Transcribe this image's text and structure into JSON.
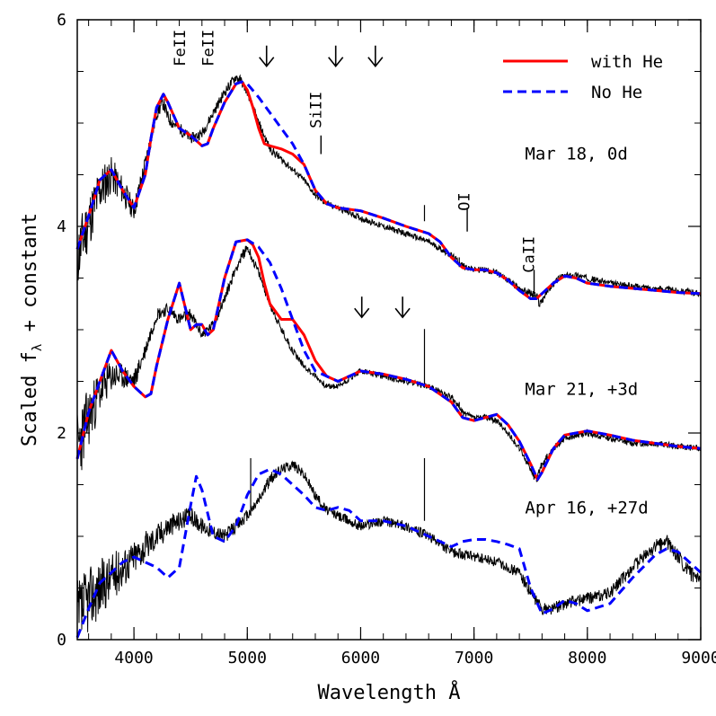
{
  "chart_data": {
    "type": "line",
    "xlabel": "Wavelength Å",
    "ylabel_main": "Scaled f",
    "ylabel_sub": "λ",
    "ylabel_tail": " + constant",
    "xlim": [
      3500,
      9000
    ],
    "ylim": [
      0,
      6
    ],
    "x_ticks": [
      4000,
      5000,
      6000,
      7000,
      8000,
      9000
    ],
    "x_minor_step": 200,
    "y_ticks": [
      0,
      2,
      4,
      6
    ],
    "y_minor_step": 0.5,
    "legend": {
      "position": "top-right",
      "entries": [
        {
          "label": "with He",
          "color": "#ff0000",
          "style": "solid"
        },
        {
          "label": "No He",
          "color": "#0000ff",
          "style": "dashed"
        }
      ]
    },
    "epochs": [
      {
        "label": "Mar 18,  0d",
        "x": 7450,
        "y": 4.65
      },
      {
        "label": "Mar 21,  +3d",
        "x": 7450,
        "y": 2.37
      },
      {
        "label": "Apr 16,  +27d",
        "x": 7450,
        "y": 1.22
      }
    ],
    "line_ids": [
      {
        "label": "FeII",
        "x": 4450,
        "y": 5.55
      },
      {
        "label": "FeII",
        "x": 4700,
        "y": 5.55
      },
      {
        "label": "SiII",
        "x": 5650,
        "y": 4.95
      },
      {
        "label": "OI",
        "x": 6960,
        "y": 4.15
      },
      {
        "label": "CaII",
        "x": 7530,
        "y": 3.55
      }
    ],
    "id_ticks": [
      {
        "x": 5650,
        "y1": 4.7,
        "y2": 4.88
      },
      {
        "x": 6940,
        "y1": 3.95,
        "y2": 4.18
      },
      {
        "x": 7530,
        "y1": 3.35,
        "y2": 3.58
      }
    ],
    "arrows": [
      {
        "x": 5170,
        "y_top": 5.75,
        "y_bottom": 5.55
      },
      {
        "x": 5780,
        "y_top": 5.75,
        "y_bottom": 5.55
      },
      {
        "x": 6130,
        "y_top": 5.75,
        "y_bottom": 5.55
      },
      {
        "x": 6010,
        "y_top": 3.32,
        "y_bottom": 3.12
      },
      {
        "x": 6370,
        "y_top": 3.32,
        "y_bottom": 3.12
      }
    ],
    "observed": [
      {
        "name": "Mar 18 observed",
        "seed": 11,
        "x": [
          3500,
          3600,
          3700,
          3800,
          3900,
          4000,
          4100,
          4200,
          4260,
          4300,
          4400,
          4500,
          4600,
          4700,
          4800,
          4900,
          4950,
          5000,
          5100,
          5200,
          5300,
          5400,
          5500,
          5600,
          5700,
          5800,
          6000,
          6200,
          6400,
          6600,
          6800,
          6900,
          7000,
          7100,
          7200,
          7300,
          7400,
          7500,
          7550,
          7580,
          7650,
          7750,
          7800,
          7900,
          8000,
          8200,
          8400,
          8600,
          8800,
          9000
        ],
        "y": [
          3.7,
          4.05,
          4.35,
          4.5,
          4.35,
          4.15,
          4.6,
          5.1,
          5.2,
          5.05,
          4.95,
          4.85,
          4.9,
          5.1,
          5.3,
          5.45,
          5.4,
          5.3,
          5.0,
          4.75,
          4.65,
          4.55,
          4.45,
          4.3,
          4.22,
          4.18,
          4.08,
          4.0,
          3.93,
          3.85,
          3.72,
          3.62,
          3.58,
          3.58,
          3.55,
          3.48,
          3.4,
          3.35,
          3.32,
          3.25,
          3.38,
          3.5,
          3.52,
          3.53,
          3.5,
          3.45,
          3.42,
          3.4,
          3.38,
          3.35
        ],
        "noise": [
          0.32,
          0.28,
          0.24,
          0.18,
          0.14,
          0.1,
          0.1,
          0.08,
          0.07,
          0.07,
          0.06,
          0.05,
          0.05,
          0.05,
          0.05,
          0.05,
          0.05,
          0.04,
          0.04,
          0.04,
          0.04,
          0.03,
          0.03,
          0.03,
          0.03,
          0.03,
          0.03,
          0.03,
          0.03,
          0.03,
          0.03,
          0.03,
          0.03,
          0.03,
          0.03,
          0.03,
          0.03,
          0.04,
          0.05,
          0.05,
          0.03,
          0.03,
          0.03,
          0.03,
          0.03,
          0.03,
          0.03,
          0.03,
          0.03,
          0.03
        ]
      },
      {
        "name": "Mar 21 observed",
        "seed": 23,
        "x": [
          3500,
          3600,
          3700,
          3800,
          3900,
          4000,
          4100,
          4200,
          4300,
          4400,
          4500,
          4600,
          4700,
          4800,
          4900,
          5000,
          5100,
          5200,
          5300,
          5400,
          5500,
          5600,
          5700,
          5800,
          6000,
          6200,
          6400,
          6600,
          6800,
          6900,
          7000,
          7100,
          7200,
          7300,
          7400,
          7500,
          7550,
          7600,
          7700,
          7800,
          8000,
          8200,
          8400,
          8600,
          8800,
          9000
        ],
        "y": [
          1.85,
          2.15,
          2.4,
          2.55,
          2.55,
          2.5,
          2.8,
          3.15,
          3.2,
          3.1,
          3.15,
          2.95,
          3.05,
          3.3,
          3.6,
          3.8,
          3.55,
          3.25,
          3.0,
          2.8,
          2.65,
          2.55,
          2.45,
          2.45,
          2.6,
          2.55,
          2.5,
          2.45,
          2.35,
          2.2,
          2.15,
          2.15,
          2.12,
          2.0,
          1.85,
          1.65,
          1.55,
          1.7,
          1.85,
          1.95,
          2.0,
          1.95,
          1.9,
          1.9,
          1.87,
          1.85
        ],
        "noise": [
          0.38,
          0.3,
          0.22,
          0.16,
          0.12,
          0.1,
          0.08,
          0.07,
          0.06,
          0.06,
          0.06,
          0.05,
          0.05,
          0.05,
          0.05,
          0.05,
          0.04,
          0.04,
          0.04,
          0.04,
          0.03,
          0.03,
          0.03,
          0.03,
          0.03,
          0.03,
          0.03,
          0.03,
          0.03,
          0.03,
          0.03,
          0.03,
          0.03,
          0.03,
          0.03,
          0.04,
          0.05,
          0.04,
          0.03,
          0.03,
          0.03,
          0.03,
          0.03,
          0.03,
          0.03,
          0.03
        ]
      },
      {
        "name": "Apr 16 observed",
        "seed": 37,
        "x": [
          3500,
          3600,
          3700,
          3800,
          3900,
          4000,
          4100,
          4200,
          4300,
          4400,
          4500,
          4600,
          4700,
          4800,
          4900,
          5000,
          5100,
          5200,
          5300,
          5400,
          5500,
          5600,
          5700,
          5800,
          5900,
          6000,
          6200,
          6400,
          6600,
          6800,
          7000,
          7200,
          7400,
          7500,
          7600,
          7700,
          7800,
          8000,
          8200,
          8400,
          8600,
          8700,
          8800,
          8900,
          9000
        ],
        "y": [
          0.2,
          0.4,
          0.5,
          0.6,
          0.7,
          0.8,
          0.9,
          1.0,
          1.1,
          1.15,
          1.2,
          1.1,
          1.05,
          1.0,
          1.1,
          1.2,
          1.35,
          1.55,
          1.65,
          1.7,
          1.6,
          1.4,
          1.25,
          1.2,
          1.15,
          1.1,
          1.15,
          1.1,
          1.0,
          0.85,
          0.8,
          0.75,
          0.65,
          0.45,
          0.3,
          0.3,
          0.35,
          0.4,
          0.45,
          0.7,
          0.9,
          0.95,
          0.8,
          0.65,
          0.55
        ],
        "noise": [
          0.38,
          0.32,
          0.28,
          0.24,
          0.2,
          0.17,
          0.15,
          0.13,
          0.12,
          0.1,
          0.09,
          0.08,
          0.07,
          0.07,
          0.07,
          0.06,
          0.06,
          0.06,
          0.05,
          0.05,
          0.05,
          0.05,
          0.05,
          0.05,
          0.05,
          0.05,
          0.05,
          0.05,
          0.05,
          0.05,
          0.05,
          0.05,
          0.05,
          0.06,
          0.06,
          0.06,
          0.06,
          0.06,
          0.06,
          0.06,
          0.07,
          0.07,
          0.07,
          0.07,
          0.07
        ]
      }
    ],
    "spikes": [
      {
        "x": 6563,
        "y0": 4.05,
        "y1": 4.05,
        "series": "Mar 18"
      },
      {
        "x": 6563,
        "y0": 2.45,
        "y1": 2.85,
        "series": "Mar 21"
      },
      {
        "x": 6563,
        "y0": 1.15,
        "y1": 1.6,
        "series": "Apr 16"
      },
      {
        "x": 5030,
        "y0": 1.2,
        "y1": 1.6,
        "series": "Apr 16"
      },
      {
        "x": 6870,
        "y0": 3.7,
        "y1": 3.45,
        "series": "Mar 18"
      },
      {
        "x": 6870,
        "y0": 2.3,
        "y1": 2.1,
        "series": "Mar 21"
      }
    ],
    "models": [
      {
        "name": "with He Mar 18",
        "color": "#ff0000",
        "style": "solid",
        "x": [
          3500,
          3600,
          3700,
          3800,
          3900,
          4000,
          4100,
          4150,
          4200,
          4260,
          4300,
          4400,
          4500,
          4600,
          4650,
          4700,
          4800,
          4900,
          4950,
          5000,
          5050,
          5100,
          5150,
          5200,
          5300,
          5400,
          5500,
          5600,
          5700,
          5800,
          6000,
          6200,
          6400,
          6600,
          6700,
          6800,
          6900,
          7000,
          7100,
          7200,
          7300,
          7400,
          7500,
          7550,
          7600,
          7700,
          7800,
          7900,
          8000,
          8200,
          8400,
          8600,
          8800,
          9000
        ],
        "y": [
          3.78,
          4.1,
          4.45,
          4.55,
          4.35,
          4.18,
          4.5,
          4.85,
          5.15,
          5.28,
          5.2,
          4.95,
          4.88,
          4.78,
          4.8,
          4.95,
          5.2,
          5.38,
          5.4,
          5.32,
          5.15,
          4.95,
          4.8,
          4.78,
          4.75,
          4.7,
          4.6,
          4.35,
          4.22,
          4.18,
          4.15,
          4.08,
          4.0,
          3.93,
          3.85,
          3.7,
          3.6,
          3.58,
          3.58,
          3.55,
          3.48,
          3.38,
          3.3,
          3.3,
          3.35,
          3.45,
          3.52,
          3.5,
          3.45,
          3.42,
          3.4,
          3.38,
          3.36,
          3.35
        ]
      },
      {
        "name": "No He Mar 18",
        "color": "#0000ff",
        "style": "dashed",
        "x": [
          3500,
          3600,
          3700,
          3800,
          3900,
          4000,
          4100,
          4150,
          4200,
          4260,
          4300,
          4400,
          4500,
          4600,
          4650,
          4700,
          4800,
          4900,
          4950,
          5000,
          5100,
          5200,
          5300,
          5400,
          5500,
          5600,
          5700,
          5800,
          6000,
          6200,
          6400,
          6600,
          6700,
          6800,
          6900,
          7000,
          7100,
          7200,
          7300,
          7400,
          7500,
          7550,
          7600,
          7700,
          7800,
          7900,
          8000,
          8200,
          8400,
          8600,
          8800,
          9000
        ],
        "y": [
          3.78,
          4.1,
          4.45,
          4.55,
          4.35,
          4.18,
          4.5,
          4.85,
          5.15,
          5.28,
          5.2,
          4.95,
          4.88,
          4.78,
          4.8,
          4.95,
          5.2,
          5.38,
          5.4,
          5.38,
          5.25,
          5.1,
          4.95,
          4.8,
          4.6,
          4.35,
          4.22,
          4.18,
          4.15,
          4.08,
          4.0,
          3.93,
          3.85,
          3.7,
          3.6,
          3.58,
          3.58,
          3.55,
          3.48,
          3.38,
          3.3,
          3.3,
          3.35,
          3.45,
          3.52,
          3.5,
          3.45,
          3.42,
          3.4,
          3.38,
          3.36,
          3.35
        ]
      },
      {
        "name": "with He Mar 21",
        "color": "#ff0000",
        "style": "solid",
        "x": [
          3500,
          3600,
          3700,
          3800,
          3900,
          4000,
          4100,
          4150,
          4200,
          4300,
          4400,
          4500,
          4550,
          4600,
          4650,
          4700,
          4800,
          4900,
          5000,
          5050,
          5100,
          5150,
          5200,
          5300,
          5400,
          5500,
          5600,
          5700,
          5800,
          6000,
          6200,
          6400,
          6600,
          6800,
          6900,
          7000,
          7100,
          7200,
          7300,
          7400,
          7500,
          7560,
          7600,
          7700,
          7800,
          8000,
          8200,
          8400,
          8600,
          8800,
          9000
        ],
        "y": [
          1.75,
          2.2,
          2.5,
          2.8,
          2.6,
          2.45,
          2.35,
          2.38,
          2.65,
          3.1,
          3.45,
          3.0,
          3.05,
          3.05,
          2.95,
          3.0,
          3.5,
          3.85,
          3.87,
          3.82,
          3.7,
          3.45,
          3.25,
          3.1,
          3.1,
          2.95,
          2.7,
          2.55,
          2.5,
          2.6,
          2.57,
          2.52,
          2.45,
          2.3,
          2.15,
          2.12,
          2.15,
          2.18,
          2.08,
          1.92,
          1.7,
          1.55,
          1.62,
          1.85,
          1.98,
          2.02,
          1.98,
          1.93,
          1.9,
          1.87,
          1.85
        ]
      },
      {
        "name": "No He Mar 21",
        "color": "#0000ff",
        "style": "dashed",
        "x": [
          3500,
          3600,
          3700,
          3800,
          3900,
          4000,
          4100,
          4150,
          4200,
          4300,
          4400,
          4500,
          4550,
          4600,
          4650,
          4700,
          4800,
          4900,
          5000,
          5100,
          5200,
          5300,
          5400,
          5500,
          5600,
          5700,
          5800,
          6000,
          6200,
          6400,
          6600,
          6800,
          6900,
          7000,
          7100,
          7200,
          7300,
          7400,
          7500,
          7560,
          7600,
          7700,
          7800,
          8000,
          8200,
          8400,
          8600,
          8800,
          9000
        ],
        "y": [
          1.75,
          2.2,
          2.5,
          2.8,
          2.6,
          2.45,
          2.35,
          2.38,
          2.65,
          3.1,
          3.45,
          3.0,
          3.05,
          3.05,
          2.95,
          3.0,
          3.5,
          3.85,
          3.87,
          3.8,
          3.65,
          3.4,
          3.1,
          2.8,
          2.6,
          2.55,
          2.5,
          2.6,
          2.57,
          2.52,
          2.45,
          2.3,
          2.15,
          2.12,
          2.15,
          2.18,
          2.08,
          1.92,
          1.7,
          1.55,
          1.62,
          1.85,
          1.98,
          2.02,
          1.98,
          1.93,
          1.9,
          1.87,
          1.85
        ]
      },
      {
        "name": "No He Apr 16",
        "color": "#0000ff",
        "style": "dashed",
        "x": [
          3500,
          3600,
          3700,
          3800,
          3900,
          4000,
          4100,
          4200,
          4300,
          4400,
          4500,
          4550,
          4600,
          4700,
          4800,
          4900,
          5000,
          5100,
          5200,
          5300,
          5400,
          5500,
          5600,
          5700,
          5800,
          5900,
          6000,
          6200,
          6400,
          6600,
          6800,
          6900,
          7000,
          7100,
          7200,
          7300,
          7400,
          7500,
          7600,
          7700,
          7800,
          7900,
          8000,
          8200,
          8400,
          8600,
          8700,
          8800,
          9000
        ],
        "y": [
          0.02,
          0.3,
          0.55,
          0.65,
          0.75,
          0.8,
          0.75,
          0.7,
          0.6,
          0.7,
          1.3,
          1.58,
          1.45,
          1.0,
          0.95,
          1.1,
          1.4,
          1.6,
          1.65,
          1.6,
          1.5,
          1.4,
          1.28,
          1.25,
          1.28,
          1.25,
          1.15,
          1.15,
          1.1,
          1.0,
          0.9,
          0.95,
          0.97,
          0.97,
          0.95,
          0.92,
          0.88,
          0.5,
          0.25,
          0.3,
          0.38,
          0.35,
          0.28,
          0.35,
          0.6,
          0.82,
          0.88,
          0.85,
          0.65
        ]
      }
    ]
  }
}
